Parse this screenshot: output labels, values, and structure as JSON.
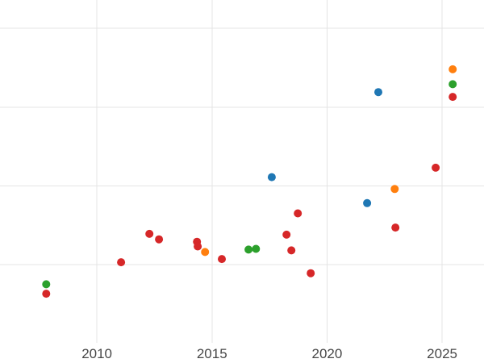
{
  "page": {
    "background": "#ffffff"
  },
  "chart_data": {
    "type": "scatter",
    "title": "",
    "xlabel": "",
    "ylabel": "",
    "grid": true,
    "legend_position": "none",
    "xlim": [
      2005.79,
      2026.82
    ],
    "ylim": [
      -0.25,
      4.36
    ],
    "x_ticks": [
      {
        "value": 2010,
        "label": "2010"
      },
      {
        "value": 2015,
        "label": "2015"
      },
      {
        "value": 2020,
        "label": "2020"
      },
      {
        "value": 2025,
        "label": "2025"
      }
    ],
    "y_gridline_values": [
      1,
      2,
      3,
      4
    ],
    "style": {
      "background": "#ffffff",
      "grid_color": "#e4e4e4",
      "tick_label_color": "#474747",
      "tick_font_size": 17,
      "point_radius": 5
    },
    "series": [
      {
        "name": "red-series",
        "color": "#d62728",
        "points": [
          [
            2007.8,
            0.63
          ],
          [
            2011.05,
            1.03
          ],
          [
            2012.28,
            1.39
          ],
          [
            2012.7,
            1.32
          ],
          [
            2014.35,
            1.29
          ],
          [
            2014.38,
            1.23
          ],
          [
            2015.43,
            1.07
          ],
          [
            2018.24,
            1.38
          ],
          [
            2018.45,
            1.18
          ],
          [
            2018.73,
            1.65
          ],
          [
            2019.29,
            0.89
          ],
          [
            2022.97,
            1.47
          ],
          [
            2024.72,
            2.23
          ],
          [
            2025.46,
            3.13
          ]
        ]
      },
      {
        "name": "green-series",
        "color": "#2ca02c",
        "points": [
          [
            2007.8,
            0.75
          ],
          [
            2016.59,
            1.19
          ],
          [
            2016.91,
            1.2
          ],
          [
            2025.46,
            3.29
          ]
        ]
      },
      {
        "name": "blue-series",
        "color": "#1f77b4",
        "points": [
          [
            2017.6,
            2.11
          ],
          [
            2021.74,
            1.78
          ],
          [
            2022.23,
            3.19
          ]
        ]
      },
      {
        "name": "orange-series",
        "color": "#ff7f0e",
        "points": [
          [
            2014.7,
            1.16
          ],
          [
            2022.94,
            1.96
          ],
          [
            2025.46,
            3.48
          ]
        ]
      }
    ]
  }
}
